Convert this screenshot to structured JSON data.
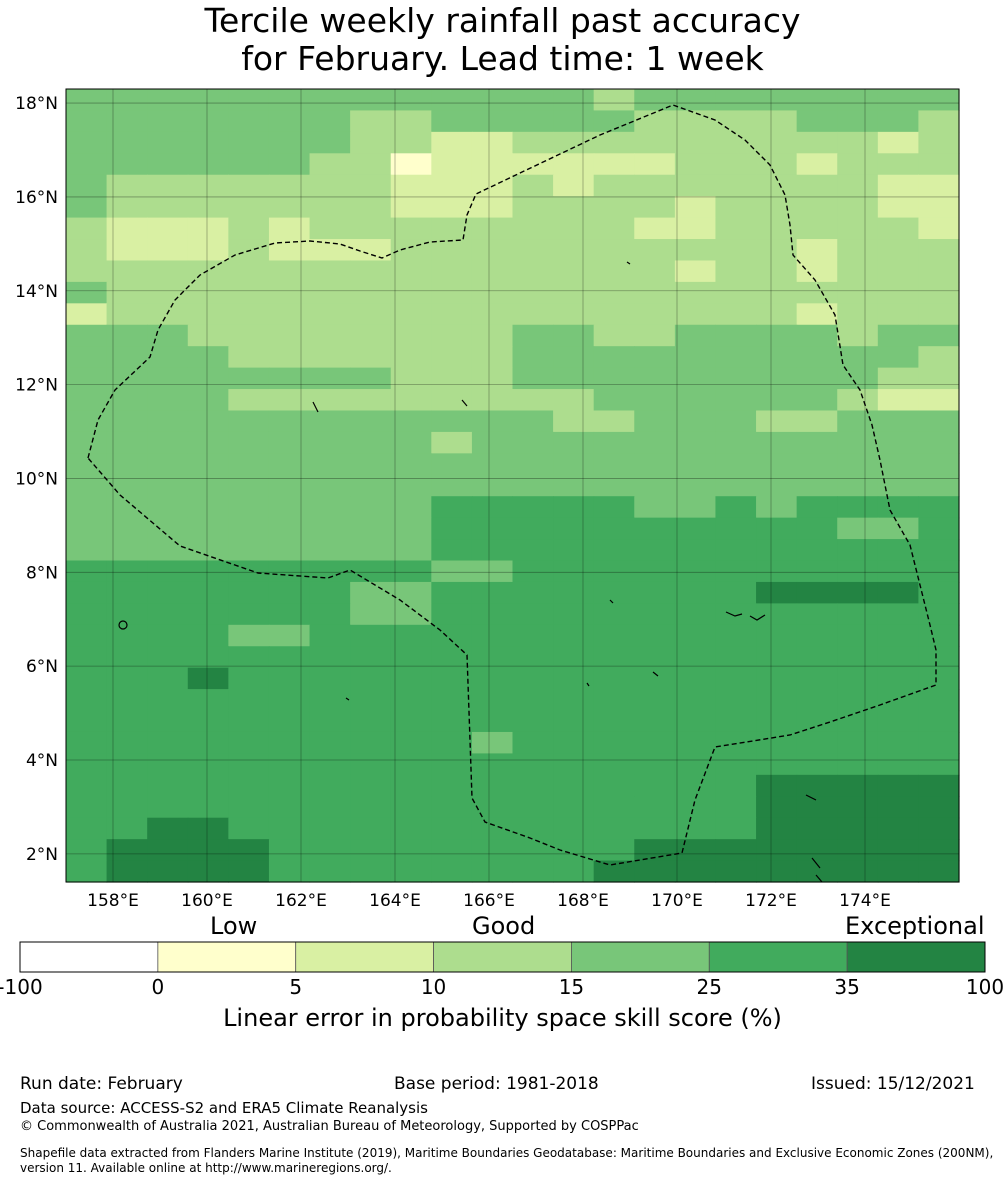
{
  "title_line1": "Tercile weekly rainfall past accuracy",
  "title_line2": "for February. Lead time: 1 week",
  "map": {
    "lon_range": [
      157,
      176
    ],
    "lat_range": [
      1.4,
      18.3
    ],
    "lat_tick_labels": [
      "18°N",
      "16°N",
      "14°N",
      "12°N",
      "10°N",
      "8°N",
      "6°N",
      "4°N",
      "2°N"
    ],
    "lon_tick_labels": [
      "158°E",
      "160°E",
      "162°E",
      "164°E",
      "166°E",
      "168°E",
      "170°E",
      "172°E",
      "174°E"
    ],
    "boundary_line": "dashed",
    "grid": true,
    "cell_color_note": "LEPS skill score classes, rows top-to-bottom, columns west-to-east",
    "skill_grid": [
      "4444444444444344444444",
      "4444444334444433334443",
      "4444444332233333333323",
      "4444443312222223332333",
      "4333333322232333333322",
      "4333333322233332333322",
      "3222323333333322333332",
      "3222322233333333332333",
      "3333333333333332332333",
      "4333333333333333333333",
      "2333333333333333332333",
      "4443333333344334444344",
      "4444333333344444444443",
      "4444444433344444444433",
      "4444333333333444444322",
      "4444444444443344433444",
      "4444444443444444444444",
      "4444444444444444444444",
      "4444444444444444444444",
      "4444444445555544545555",
      "4444444445555555555445",
      "4444444445555555555555",
      "5555555554455555555555",
      "5555555445555555566665",
      "5555555445555555555555",
      "5555445555555555555555",
      "5555555555555555555555",
      "5556555555555555555555",
      "5555555555555555555555",
      "5555555555555555555555",
      "5555555555455555555555",
      "5555555555555555555555",
      "5555555555555555566666",
      "5555555555555555566666",
      "5566555555555555566666",
      "5666655555555566666666",
      "5666655555555666666666"
    ]
  },
  "colorbar": {
    "category_low": "Low",
    "category_good": "Good",
    "category_exceptional": "Exceptional",
    "bins": [
      {
        "from": -100,
        "to": 0,
        "color": "#ffffff"
      },
      {
        "from": 0,
        "to": 5,
        "color": "#ffffcc"
      },
      {
        "from": 5,
        "to": 10,
        "color": "#d9f0a3"
      },
      {
        "from": 10,
        "to": 15,
        "color": "#addd8e"
      },
      {
        "from": 15,
        "to": 25,
        "color": "#78c679"
      },
      {
        "from": 25,
        "to": 35,
        "color": "#41ab5d"
      },
      {
        "from": 35,
        "to": 100,
        "color": "#238443"
      }
    ],
    "tick_labels": [
      "-100",
      "0",
      "5",
      "10",
      "15",
      "25",
      "35",
      "100"
    ],
    "label": "Linear error in probability space skill score (%)"
  },
  "footer": {
    "run_date": "Run date: February",
    "base_period": "Base period: 1981-2018",
    "issued": "Issued: 15/12/2021",
    "data_source": "Data source: ACCESS-S2 and ERA5 Climate Reanalysis",
    "copyright": "© Commonwealth of Australia 2021, Australian Bureau of Meteorology, Supported by COSPPac",
    "shapefile_line1": "Shapefile data extracted from Flanders Marine Institute (2019), Maritime Boundaries Geodatabase: Maritime Boundaries and Exclusive Economic Zones (200NM),",
    "shapefile_line2": "version 11. Available online at http://www.marineregions.org/."
  }
}
